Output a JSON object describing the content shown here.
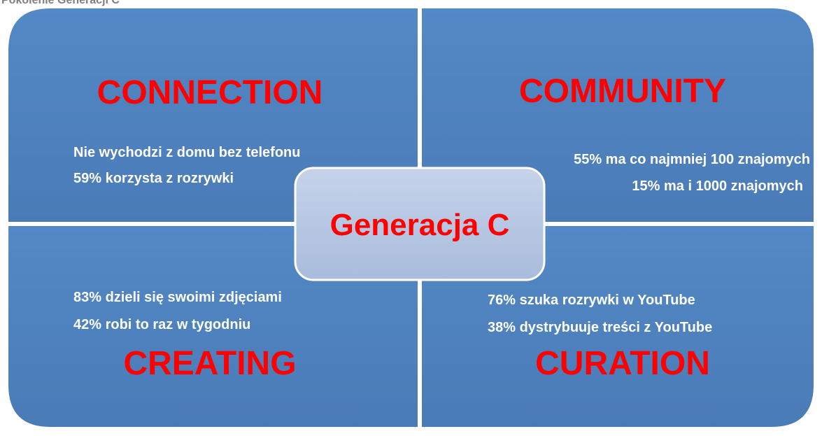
{
  "title": "Pokolenie Generacji C",
  "center": "Generacja C",
  "quadrants": [
    {
      "heading": "CONNECTION",
      "lines": [
        "Nie wychodzi z domu bez telefonu",
        "59% korzysta z rozrywki"
      ]
    },
    {
      "heading": "COMMUNITY",
      "lines": [
        "55% ma co najmniej 100 znajomych",
        "15% ma i 1000 znajomych"
      ]
    },
    {
      "heading": "CREATING",
      "lines": [
        "83% dzieli się swoimi zdjęciami",
        "42% robi to raz w tygodniu"
      ]
    },
    {
      "heading": "CURATION",
      "lines": [
        "76% szuka rozrywki w YouTube",
        "38% dystrybuuje treści z YouTube"
      ]
    }
  ]
}
